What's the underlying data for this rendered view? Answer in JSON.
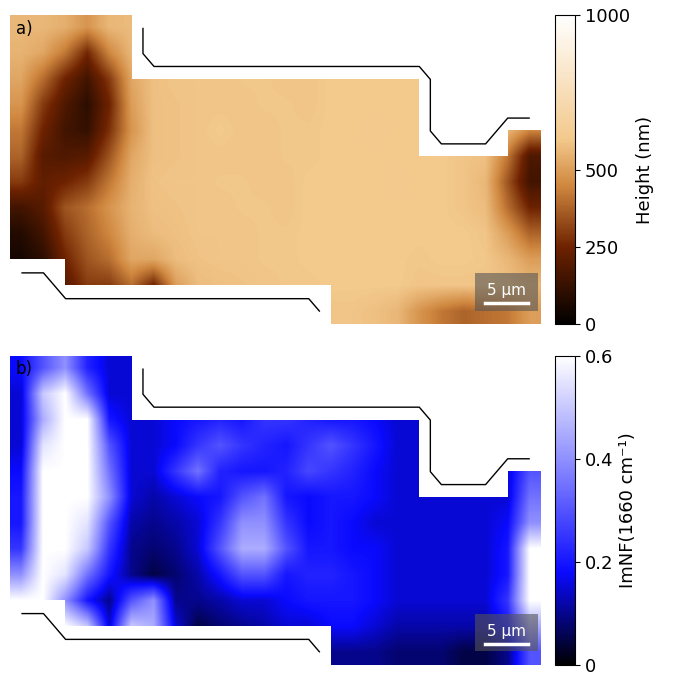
{
  "chart_data": [
    {
      "type": "heatmap",
      "title": "a)",
      "tick_labels": false,
      "colorbar_label": "Height (nm)",
      "colorbar_range": [
        0,
        1000
      ],
      "colorbar_ticks": [
        0,
        250,
        500,
        1000
      ],
      "scale_bar_label": "5 µm",
      "cells": [
        [
          560,
          560,
          540,
          480,
          560,
          570,
          null,
          null,
          null,
          null,
          null,
          null,
          null,
          null,
          null,
          null,
          null,
          null,
          null,
          null,
          null,
          null,
          null,
          null
        ],
        [
          550,
          520,
          420,
          260,
          450,
          560,
          null,
          null,
          null,
          null,
          null,
          null,
          null,
          null,
          null,
          null,
          null,
          null,
          null,
          null,
          null,
          null,
          null,
          null
        ],
        [
          520,
          400,
          250,
          150,
          300,
          520,
          580,
          590,
          590,
          590,
          595,
          595,
          590,
          590,
          600,
          600,
          600,
          600,
          600,
          null,
          null,
          null,
          null,
          null
        ],
        [
          480,
          300,
          180,
          100,
          250,
          500,
          580,
          585,
          590,
          590,
          590,
          595,
          595,
          590,
          600,
          600,
          600,
          600,
          600,
          null,
          null,
          null,
          null,
          null
        ],
        [
          420,
          250,
          150,
          120,
          280,
          480,
          580,
          585,
          590,
          600,
          590,
          590,
          595,
          595,
          600,
          600,
          605,
          600,
          600,
          null,
          null,
          null,
          560,
          450
        ],
        [
          380,
          200,
          180,
          200,
          350,
          520,
          580,
          585,
          590,
          590,
          590,
          590,
          595,
          595,
          600,
          600,
          600,
          600,
          600,
          600,
          590,
          580,
          420,
          180
        ],
        [
          300,
          220,
          250,
          300,
          420,
          540,
          585,
          590,
          590,
          595,
          595,
          590,
          590,
          600,
          600,
          600,
          600,
          605,
          600,
          600,
          590,
          560,
          350,
          150
        ],
        [
          150,
          200,
          350,
          400,
          480,
          550,
          580,
          585,
          590,
          590,
          595,
          595,
          590,
          600,
          600,
          600,
          600,
          600,
          600,
          600,
          590,
          570,
          400,
          250
        ],
        [
          80,
          150,
          300,
          380,
          450,
          540,
          570,
          580,
          590,
          590,
          590,
          595,
          595,
          600,
          600,
          600,
          600,
          600,
          600,
          600,
          600,
          590,
          500,
          380
        ],
        [
          50,
          100,
          250,
          350,
          400,
          520,
          520,
          570,
          585,
          590,
          590,
          595,
          595,
          600,
          600,
          600,
          600,
          600,
          595,
          600,
          600,
          595,
          560,
          500
        ],
        [
          null,
          null,
          200,
          300,
          300,
          400,
          250,
          500,
          570,
          580,
          585,
          590,
          595,
          595,
          600,
          600,
          600,
          600,
          590,
          590,
          590,
          590,
          580,
          560
        ],
        [
          null,
          null,
          null,
          null,
          null,
          null,
          null,
          null,
          null,
          null,
          null,
          null,
          null,
          null,
          590,
          590,
          580,
          560,
          480,
          420,
          380,
          400,
          420,
          500
        ]
      ]
    },
    {
      "type": "heatmap",
      "title": "b)",
      "tick_labels": false,
      "colorbar_label": "ImNF(1660 cm⁻¹)",
      "colorbar_range": [
        0,
        0.6
      ],
      "colorbar_ticks": [
        0,
        0.2,
        0.4,
        0.6
      ],
      "scale_bar_label": "5 µm",
      "cells": [
        [
          0.18,
          0.3,
          0.4,
          0.22,
          0.15,
          0.15,
          null,
          null,
          null,
          null,
          null,
          null,
          null,
          null,
          null,
          null,
          null,
          null,
          null,
          null,
          null,
          null,
          null,
          null
        ],
        [
          0.15,
          0.5,
          0.6,
          0.35,
          0.15,
          0.15,
          null,
          null,
          null,
          null,
          null,
          null,
          null,
          null,
          null,
          null,
          null,
          null,
          null,
          null,
          null,
          null,
          null,
          null
        ],
        [
          0.15,
          0.45,
          0.6,
          0.6,
          0.2,
          0.15,
          0.15,
          0.18,
          0.2,
          0.22,
          0.2,
          0.25,
          0.25,
          0.22,
          0.2,
          0.2,
          0.18,
          0.15,
          0.15,
          null,
          null,
          null,
          null,
          null
        ],
        [
          0.15,
          0.55,
          0.6,
          0.6,
          0.3,
          0.15,
          0.15,
          0.18,
          0.25,
          0.3,
          0.25,
          0.22,
          0.2,
          0.25,
          0.3,
          0.25,
          0.2,
          0.15,
          0.15,
          null,
          null,
          null,
          null,
          null
        ],
        [
          0.18,
          0.6,
          0.6,
          0.6,
          0.35,
          0.15,
          0.15,
          0.25,
          0.35,
          0.22,
          0.2,
          0.2,
          0.22,
          0.28,
          0.25,
          0.22,
          0.18,
          0.15,
          0.15,
          null,
          null,
          null,
          0.15,
          0.3
        ],
        [
          0.2,
          0.6,
          0.6,
          0.6,
          0.4,
          0.15,
          0.12,
          0.15,
          0.18,
          0.2,
          0.3,
          0.35,
          0.2,
          0.18,
          0.2,
          0.2,
          0.18,
          0.15,
          0.15,
          0.15,
          0.15,
          0.15,
          0.15,
          0.35
        ],
        [
          0.2,
          0.6,
          0.6,
          0.55,
          0.3,
          0.12,
          0.1,
          0.12,
          0.15,
          0.25,
          0.4,
          0.4,
          0.25,
          0.18,
          0.2,
          0.18,
          0.15,
          0.15,
          0.15,
          0.15,
          0.15,
          0.15,
          0.18,
          0.4
        ],
        [
          0.25,
          0.6,
          0.6,
          0.5,
          0.25,
          0.1,
          0.08,
          0.1,
          0.15,
          0.3,
          0.45,
          0.45,
          0.3,
          0.2,
          0.2,
          0.18,
          0.18,
          0.15,
          0.15,
          0.15,
          0.15,
          0.15,
          0.2,
          0.6
        ],
        [
          0.4,
          0.6,
          0.55,
          0.35,
          0.2,
          0.1,
          0.05,
          0.08,
          0.12,
          0.2,
          0.3,
          0.3,
          0.2,
          0.22,
          0.22,
          0.2,
          0.18,
          0.15,
          0.15,
          0.15,
          0.15,
          0.15,
          0.2,
          0.6
        ],
        [
          0.6,
          0.6,
          0.4,
          0.2,
          0.1,
          0.3,
          0.4,
          0.1,
          0.1,
          0.12,
          0.15,
          0.15,
          0.18,
          0.2,
          0.2,
          0.2,
          0.18,
          0.15,
          0.15,
          0.15,
          0.15,
          0.15,
          0.25,
          0.6
        ],
        [
          null,
          null,
          0.6,
          0.5,
          0.15,
          0.5,
          0.45,
          0.15,
          0.05,
          0.08,
          0.1,
          0.12,
          0.15,
          0.15,
          0.18,
          0.18,
          0.15,
          0.12,
          0.12,
          0.12,
          0.12,
          0.12,
          0.2,
          0.45
        ],
        [
          null,
          null,
          null,
          null,
          null,
          null,
          null,
          null,
          null,
          null,
          null,
          null,
          null,
          null,
          0.1,
          0.1,
          0.1,
          0.08,
          0.08,
          0.08,
          0.05,
          0.05,
          0.1,
          0.3
        ]
      ]
    }
  ]
}
